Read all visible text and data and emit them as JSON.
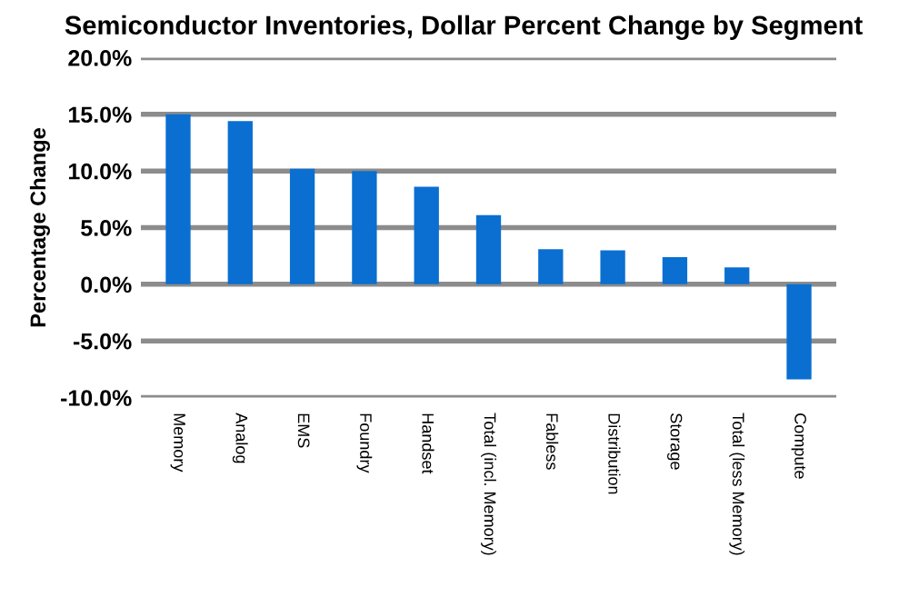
{
  "chart_data": {
    "type": "bar",
    "title": "Semiconductor Inventories, Dollar Percent Change by Segment",
    "ylabel": "Percentage Change",
    "categories": [
      "Memory",
      "Analog",
      "EMS",
      "Foundry",
      "Handset",
      "Total (incl. Memory)",
      "Fabless",
      "Distribution",
      "Storage",
      "Total (less Memory)",
      "Compute"
    ],
    "values": [
      15.0,
      14.4,
      10.2,
      10.0,
      8.6,
      6.1,
      3.1,
      3.0,
      2.4,
      1.5,
      -8.4
    ],
    "color": "#0a6fd1",
    "ylim": [
      -10,
      20
    ],
    "yticks": [
      {
        "value": -10,
        "label": "-10.0%"
      },
      {
        "value": -5,
        "label": "-5.0%"
      },
      {
        "value": 0,
        "label": "0.0%"
      },
      {
        "value": 5,
        "label": "5.0%"
      },
      {
        "value": 10,
        "label": "10.0%"
      },
      {
        "value": 15,
        "label": "15.0%"
      },
      {
        "value": 20,
        "label": "20.0%"
      }
    ],
    "grid": "y"
  }
}
